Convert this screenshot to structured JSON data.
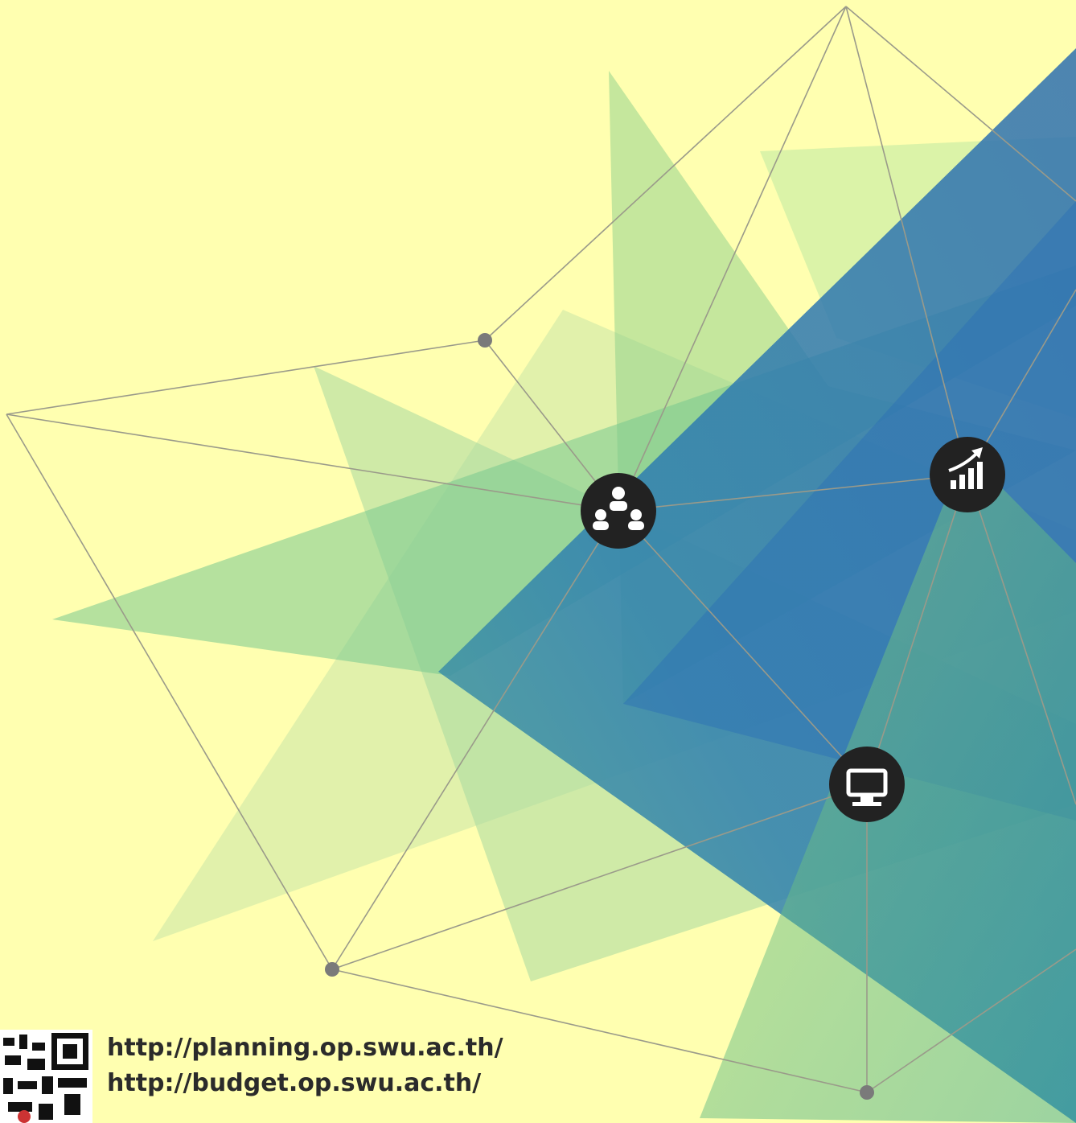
{
  "links": [
    "http://planning.op.swu.ac.th/",
    "http://budget.op.swu.ac.th/"
  ]
}
